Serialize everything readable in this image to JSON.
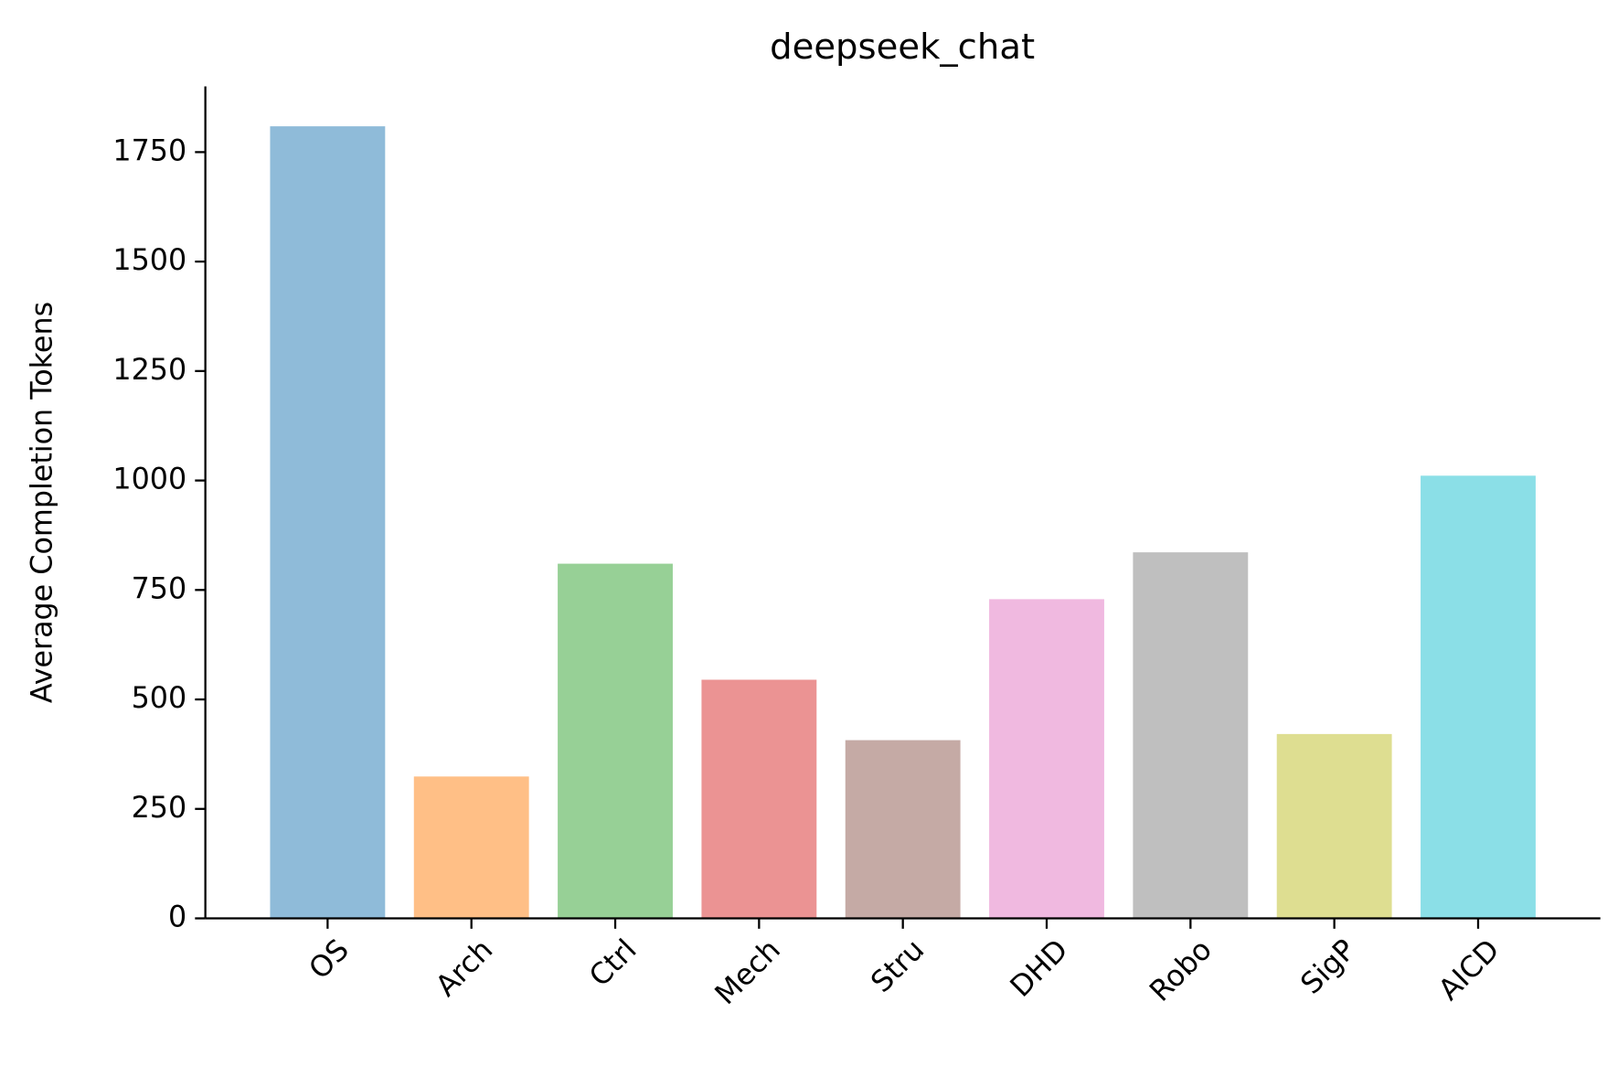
{
  "chart_data": {
    "type": "bar",
    "title": "deepseek_chat",
    "y_label": "Average Completion Tokens",
    "categories": [
      "OS",
      "Arch",
      "Ctrl",
      "Mech",
      "Stru",
      "DHD",
      "Robo",
      "SigP",
      "AICD"
    ],
    "values": [
      1809,
      324,
      810,
      545,
      407,
      729,
      836,
      421,
      1011
    ],
    "colors": [
      "#8fbbd9",
      "#ffbf86",
      "#97d096",
      "#eb9393",
      "#c5aaa5",
      "#f0b9e0",
      "#bfbfbf",
      "#dede91",
      "#8bdfe7"
    ],
    "ylim": [
      0,
      1900
    ],
    "yticks": [
      0,
      250,
      500,
      750,
      1000,
      1250,
      1500,
      1750
    ]
  }
}
